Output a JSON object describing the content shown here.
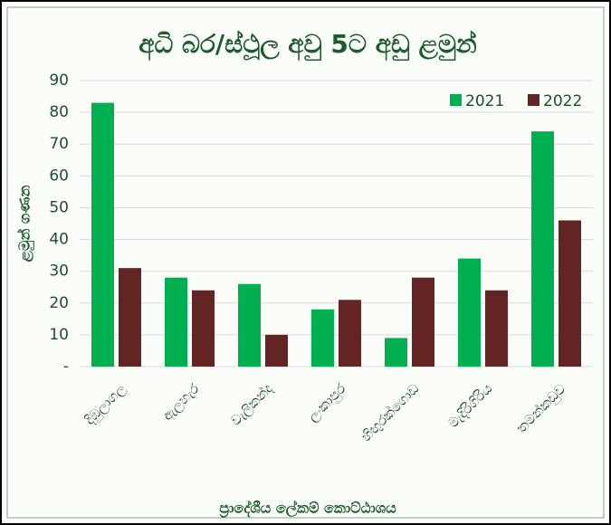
{
  "chart_data": {
    "type": "bar",
    "title": "අධි බර/ස්ථූල අවු 5ට අඩු ළමුන්",
    "x_label": "ප්‍රාදේශීය ලේකම් කොට්ඨාශය",
    "y_label": "ළමුන් ගණන",
    "categories": [
      "දිඹුලාගල",
      "ඇලහැර",
      "වැලිකන්ද",
      "ලංකාපුර",
      "හිඟුරක්ගොඩ",
      "මැදිරිගිරිය",
      "තමන්කඩුව"
    ],
    "series": [
      {
        "name": "2021",
        "color": "#00b050",
        "values": [
          83,
          28,
          26,
          18,
          9,
          34,
          74
        ]
      },
      {
        "name": "2022",
        "color": "#632523",
        "values": [
          31,
          24,
          10,
          21,
          28,
          24,
          46
        ]
      }
    ],
    "ylim": [
      0,
      90
    ],
    "yticks": [
      {
        "value": 0,
        "label": "-"
      },
      10,
      20,
      30,
      40,
      50,
      60,
      70,
      80,
      90
    ],
    "grid": true,
    "legend": "upper right"
  }
}
